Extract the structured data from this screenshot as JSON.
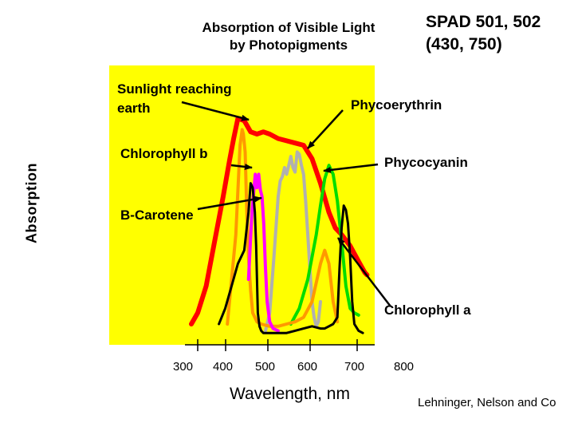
{
  "chart_data": {
    "type": "line",
    "title_lines": [
      "Absorption of Visible Light",
      "by Photopigments"
    ],
    "corner_note_lines": [
      "SPAD 501, 502",
      "(430, 750)"
    ],
    "xlabel": "Wavelength, nm",
    "ylabel": "Absorption",
    "x_ticks": [
      "300",
      "400",
      "500",
      "600",
      "700",
      "800"
    ],
    "xlim": [
      270,
      760
    ],
    "ylim": [
      0,
      1
    ],
    "grid": false,
    "plot_background": "#ffff00",
    "annotations": [
      {
        "text": "Sunlight reaching",
        "text2": "earth",
        "target": "sunlight"
      },
      {
        "text": "Phycoerythrin",
        "target": "phycoerythrin"
      },
      {
        "text": "Chlorophyll b",
        "target": "chlorophyll_b"
      },
      {
        "text": "Phycocyanin",
        "target": "phycocyanin"
      },
      {
        "text": "B-Carotene",
        "target": "b_carotene"
      },
      {
        "text": "Chlorophyll a",
        "target": "chlorophyll_a"
      }
    ],
    "series": [
      {
        "key": "sunlight",
        "color": "#ff0000",
        "width": 6,
        "x": [
          285,
          300,
          320,
          340,
          360,
          375,
          385,
          395,
          410,
          425,
          440,
          455,
          470,
          490,
          510,
          530,
          550,
          570,
          590,
          610,
          625,
          640,
          660,
          680,
          695,
          700
        ],
        "y": [
          0.05,
          0.1,
          0.22,
          0.42,
          0.62,
          0.78,
          0.88,
          0.97,
          0.96,
          0.91,
          0.9,
          0.91,
          0.9,
          0.88,
          0.87,
          0.86,
          0.85,
          0.79,
          0.68,
          0.55,
          0.48,
          0.45,
          0.4,
          0.33,
          0.28,
          0.27
        ]
      },
      {
        "key": "phycoerythrin",
        "color": "#b0b0b0",
        "width": 4,
        "x": [
          460,
          470,
          480,
          490,
          495,
          500,
          505,
          510,
          515,
          520,
          525,
          530,
          535,
          540,
          545,
          550,
          555,
          560,
          565,
          570,
          575,
          580,
          585,
          590
        ],
        "y": [
          0.02,
          0.1,
          0.35,
          0.62,
          0.69,
          0.71,
          0.75,
          0.72,
          0.76,
          0.8,
          0.75,
          0.73,
          0.82,
          0.81,
          0.76,
          0.72,
          0.6,
          0.45,
          0.3,
          0.15,
          0.08,
          0.04,
          0.06,
          0.15
        ]
      },
      {
        "key": "phycocyanin",
        "color": "#00dd00",
        "width": 4,
        "x": [
          520,
          540,
          560,
          580,
          590,
          600,
          610,
          620,
          630,
          640,
          650,
          660,
          670,
          680
        ],
        "y": [
          0.05,
          0.12,
          0.25,
          0.45,
          0.58,
          0.7,
          0.76,
          0.72,
          0.6,
          0.42,
          0.22,
          0.12,
          0.1,
          0.09
        ]
      },
      {
        "key": "chlorophyll_b",
        "color": "#ff9900",
        "width": 4,
        "x": [
          370,
          380,
          390,
          400,
          405,
          408,
          412,
          416,
          420,
          425,
          430,
          440,
          450,
          470,
          490,
          510,
          530,
          550,
          570,
          590,
          600,
          610,
          620,
          630
        ],
        "y": [
          0.05,
          0.25,
          0.45,
          0.85,
          0.92,
          0.9,
          0.82,
          0.55,
          0.35,
          0.2,
          0.1,
          0.06,
          0.05,
          0.04,
          0.04,
          0.05,
          0.06,
          0.08,
          0.15,
          0.32,
          0.38,
          0.32,
          0.15,
          0.06
        ]
      },
      {
        "key": "b_carotene",
        "color": "#ff00ff",
        "width": 4,
        "x": [
          420,
          428,
          436,
          440,
          444,
          448,
          452,
          456,
          460,
          464,
          470,
          478,
          490
        ],
        "y": [
          0.25,
          0.55,
          0.72,
          0.66,
          0.72,
          0.65,
          0.62,
          0.5,
          0.3,
          0.15,
          0.06,
          0.03,
          0.02
        ]
      },
      {
        "key": "chlorophyll_a",
        "color": "#000000",
        "width": 3,
        "x": [
          350,
          365,
          380,
          395,
          410,
          420,
          425,
          430,
          435,
          438,
          442,
          446,
          450,
          455,
          460,
          470,
          490,
          510,
          530,
          550,
          570,
          590,
          600,
          610,
          620,
          630,
          635,
          640,
          645,
          650,
          655,
          660,
          665,
          670,
          680,
          690
        ],
        "y": [
          0.05,
          0.12,
          0.22,
          0.32,
          0.38,
          0.55,
          0.68,
          0.66,
          0.55,
          0.4,
          0.1,
          0.04,
          0.02,
          0.01,
          0.01,
          0.01,
          0.01,
          0.01,
          0.02,
          0.03,
          0.04,
          0.03,
          0.03,
          0.04,
          0.05,
          0.08,
          0.3,
          0.48,
          0.58,
          0.56,
          0.5,
          0.35,
          0.15,
          0.05,
          0.02,
          0.01
        ]
      }
    ]
  }
}
